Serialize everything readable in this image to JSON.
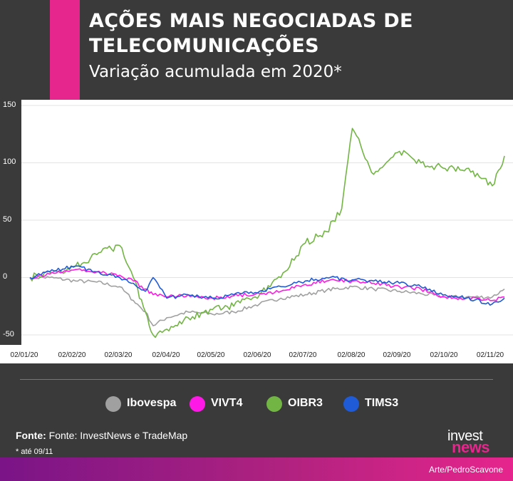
{
  "header": {
    "title": "AÇÕES MAIS NEGOCIADAS DE TELECOMUNICAÇÕES",
    "subtitle": "Variação acumulada em 2020*"
  },
  "chart_data": {
    "type": "line",
    "title": "AÇÕES MAIS NEGOCIADAS DE TELECOMUNICAÇÕES",
    "subtitle": "Variação acumulada em 2020*",
    "xlabel": "",
    "ylabel": "",
    "ylim": [
      -55,
      150
    ],
    "yticks": [
      150,
      100,
      50,
      0,
      -50
    ],
    "ytick_labels": [
      "150",
      "100",
      "50",
      "0",
      "-50"
    ],
    "xtick_labels": [
      "02/01/20",
      "02/02/20",
      "02/03/20",
      "02/04/20",
      "02/05/20",
      "02/06/20",
      "02/07/20",
      "02/08/20",
      "02/09/20",
      "02/10/20",
      "02/11/20"
    ],
    "grid": true,
    "legend_position": "bottom",
    "series": [
      {
        "name": "Ibovespa",
        "color": "#a0a0a0",
        "x": [
          "2020-01-02",
          "2020-01-15",
          "2020-02-01",
          "2020-02-15",
          "2020-03-01",
          "2020-03-10",
          "2020-03-18",
          "2020-03-23",
          "2020-04-01",
          "2020-04-15",
          "2020-05-01",
          "2020-05-15",
          "2020-06-01",
          "2020-06-15",
          "2020-07-01",
          "2020-07-15",
          "2020-08-01",
          "2020-08-15",
          "2020-09-01",
          "2020-09-15",
          "2020-10-01",
          "2020-10-15",
          "2020-11-01",
          "2020-11-09"
        ],
        "values": [
          0,
          0,
          -3,
          -4,
          -8,
          -20,
          -30,
          -42,
          -35,
          -30,
          -32,
          -30,
          -23,
          -18,
          -15,
          -11,
          -8,
          -10,
          -12,
          -14,
          -17,
          -17,
          -17,
          -10
        ]
      },
      {
        "name": "VIVT4",
        "color": "#ff19e6",
        "x": [
          "2020-01-02",
          "2020-01-15",
          "2020-02-01",
          "2020-02-15",
          "2020-03-01",
          "2020-03-10",
          "2020-03-18",
          "2020-03-23",
          "2020-04-01",
          "2020-04-15",
          "2020-05-01",
          "2020-05-15",
          "2020-06-01",
          "2020-06-15",
          "2020-07-01",
          "2020-07-15",
          "2020-08-01",
          "2020-08-15",
          "2020-09-01",
          "2020-09-15",
          "2020-10-01",
          "2020-10-15",
          "2020-11-01",
          "2020-11-09"
        ],
        "values": [
          0,
          3,
          7,
          5,
          2,
          -3,
          -10,
          -15,
          -17,
          -15,
          -18,
          -16,
          -14,
          -12,
          -6,
          -3,
          -3,
          -5,
          -8,
          -10,
          -17,
          -18,
          -20,
          -17
        ]
      },
      {
        "name": "OIBR3",
        "color": "#72b544",
        "x": [
          "2020-01-02",
          "2020-01-20",
          "2020-02-01",
          "2020-02-15",
          "2020-03-01",
          "2020-03-10",
          "2020-03-18",
          "2020-03-23",
          "2020-04-01",
          "2020-04-15",
          "2020-05-01",
          "2020-05-15",
          "2020-06-01",
          "2020-06-15",
          "2020-07-01",
          "2020-07-15",
          "2020-07-25",
          "2020-08-01",
          "2020-08-15",
          "2020-09-01",
          "2020-09-15",
          "2020-10-01",
          "2020-10-15",
          "2020-11-01",
          "2020-11-09"
        ],
        "values": [
          0,
          5,
          10,
          20,
          28,
          0,
          -30,
          -50,
          -45,
          -35,
          -28,
          -25,
          -15,
          0,
          30,
          40,
          60,
          130,
          90,
          110,
          100,
          95,
          95,
          80,
          106
        ]
      },
      {
        "name": "TIMS3",
        "color": "#1f5bd6",
        "x": [
          "2020-01-02",
          "2020-01-15",
          "2020-02-01",
          "2020-02-15",
          "2020-03-01",
          "2020-03-10",
          "2020-03-18",
          "2020-03-23",
          "2020-04-01",
          "2020-04-15",
          "2020-05-01",
          "2020-05-15",
          "2020-06-01",
          "2020-06-15",
          "2020-07-01",
          "2020-07-15",
          "2020-08-01",
          "2020-08-15",
          "2020-09-01",
          "2020-09-15",
          "2020-10-01",
          "2020-10-15",
          "2020-11-01",
          "2020-11-09"
        ],
        "values": [
          0,
          5,
          10,
          5,
          0,
          -5,
          -12,
          0,
          -18,
          -15,
          -18,
          -15,
          -12,
          -8,
          -3,
          0,
          -2,
          -3,
          -5,
          -8,
          -15,
          -18,
          -23,
          -18
        ]
      }
    ]
  },
  "legend": {
    "items": [
      {
        "label": "Ibovespa",
        "color": "#a0a0a0"
      },
      {
        "label": "VIVT4",
        "color": "#ff19e6"
      },
      {
        "label": "OIBR3",
        "color": "#72b544"
      },
      {
        "label": "TIMS3",
        "color": "#1f5bd6"
      }
    ]
  },
  "footer": {
    "source_label": "Fonte:",
    "source_text": "Fonte: InvestNews e TradeMap",
    "note": "* até 09/11",
    "logo_top": "invest",
    "logo_bottom": "news",
    "credit": "Arte/PedroScavone"
  }
}
